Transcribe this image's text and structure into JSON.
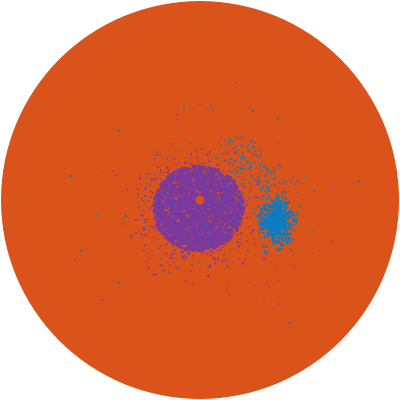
{
  "image": {
    "background": "#ffffff",
    "disk_color": "#d9531a",
    "cluster_colors": {
      "primary": "#7a3a9e",
      "secondary": "#0a7cc2"
    }
  }
}
